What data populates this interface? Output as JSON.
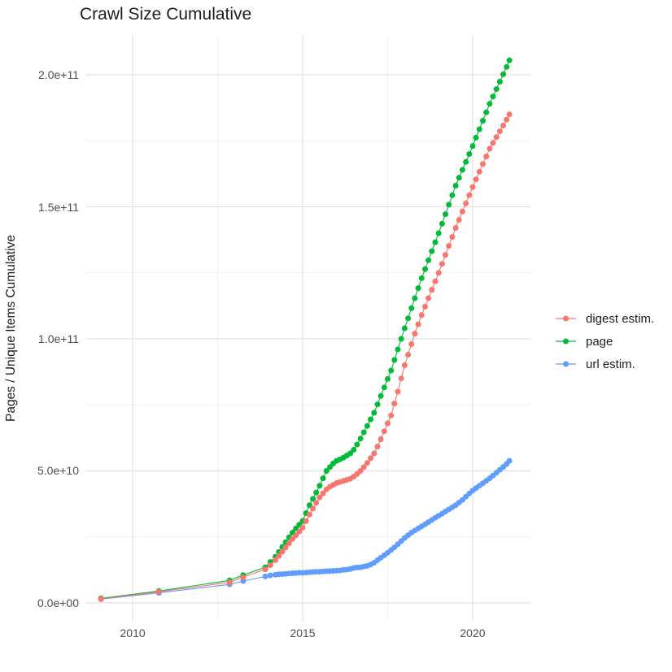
{
  "figure": {
    "background": "#ffffff"
  },
  "chart_data": {
    "type": "line",
    "title": "Crawl Size Cumulative",
    "xlabel": "",
    "ylabel": "Pages / Unique Items Cumulative",
    "legend_position": "right",
    "grid": true,
    "axis": {
      "xlim": [
        2008.61,
        2021.7
      ],
      "ylim": [
        -7100000000.0,
        215100000000.0
      ],
      "x_major_ticks": [
        2010,
        2015,
        2020
      ],
      "x_tick_labels": [
        "2010",
        "2015",
        "2020"
      ],
      "x_minor_ticks": [
        2012.5,
        2017.5
      ],
      "y_major_ticks": [
        0,
        50000000000.0,
        100000000000.0,
        150000000000.0,
        200000000000.0
      ],
      "y_tick_labels": [
        "0.0e+00",
        "5.0e+10",
        "1.0e+11",
        "1.5e+11",
        "2.0e+11"
      ],
      "y_minor_ticks": [
        25000000000.0,
        75000000000.0,
        125000000000.0,
        175000000000.0
      ]
    },
    "colors": {
      "digest_estim": "#F8766D",
      "page": "#00BA38",
      "url_estim": "#619CFF",
      "grid_major": "#e3e3e3",
      "grid_minor": "#f1f1f1",
      "tick_text": "#4d4d4d",
      "text": "#1d1d1d"
    },
    "series": [
      {
        "name": "digest estim.",
        "color": "#F8766D",
        "points": [
          [
            2009.07,
            1500000000.0
          ],
          [
            2010.77,
            4200000000.0
          ],
          [
            2012.85,
            7800000000.0
          ],
          [
            2013.25,
            9700000000.0
          ],
          [
            2013.9,
            12700000000.0
          ],
          [
            2014.05,
            14300000000.0
          ],
          [
            2014.2,
            16200000000.0
          ],
          [
            2014.3,
            17800000000.0
          ],
          [
            2014.4,
            19400000000.0
          ],
          [
            2014.5,
            21000000000.0
          ],
          [
            2014.6,
            22600000000.0
          ],
          [
            2014.7,
            24200000000.0
          ],
          [
            2014.8,
            25600000000.0
          ],
          [
            2014.9,
            27000000000.0
          ],
          [
            2015.0,
            28500000000.0
          ],
          [
            2015.1,
            31000000000.0
          ],
          [
            2015.2,
            33500000000.0
          ],
          [
            2015.3,
            35700000000.0
          ],
          [
            2015.4,
            37900000000.0
          ],
          [
            2015.5,
            40000000000.0
          ],
          [
            2015.6,
            41500000000.0
          ],
          [
            2015.7,
            43000000000.0
          ],
          [
            2015.8,
            44000000000.0
          ],
          [
            2015.9,
            44700000000.0
          ],
          [
            2016.0,
            45400000000.0
          ],
          [
            2016.1,
            45800000000.0
          ],
          [
            2016.2,
            46200000000.0
          ],
          [
            2016.3,
            46600000000.0
          ],
          [
            2016.4,
            47000000000.0
          ],
          [
            2016.5,
            47800000000.0
          ],
          [
            2016.6,
            48800000000.0
          ],
          [
            2016.7,
            50000000000.0
          ],
          [
            2016.8,
            51400000000.0
          ],
          [
            2016.9,
            53000000000.0
          ],
          [
            2017.0,
            54800000000.0
          ],
          [
            2017.1,
            56600000000.0
          ],
          [
            2017.2,
            59200000000.0
          ],
          [
            2017.3,
            62000000000.0
          ],
          [
            2017.4,
            65000000000.0
          ],
          [
            2017.5,
            68000000000.0
          ],
          [
            2017.6,
            71000000000.0
          ],
          [
            2017.7,
            75500000000.0
          ],
          [
            2017.8,
            80000000000.0
          ],
          [
            2017.9,
            85000000000.0
          ],
          [
            2018.0,
            90000000000.0
          ],
          [
            2018.1,
            94000000000.0
          ],
          [
            2018.2,
            98000000000.0
          ],
          [
            2018.3,
            102000000000.0
          ],
          [
            2018.4,
            105500000000.0
          ],
          [
            2018.5,
            109000000000.0
          ],
          [
            2018.6,
            112200000000.0
          ],
          [
            2018.7,
            115400000000.0
          ],
          [
            2018.8,
            118600000000.0
          ],
          [
            2018.9,
            121800000000.0
          ],
          [
            2019.0,
            125000000000.0
          ],
          [
            2019.1,
            128400000000.0
          ],
          [
            2019.2,
            131800000000.0
          ],
          [
            2019.3,
            135200000000.0
          ],
          [
            2019.4,
            138600000000.0
          ],
          [
            2019.5,
            142000000000.0
          ],
          [
            2019.6,
            145100000000.0
          ],
          [
            2019.7,
            148200000000.0
          ],
          [
            2019.8,
            151300000000.0
          ],
          [
            2019.9,
            154400000000.0
          ],
          [
            2020.0,
            157500000000.0
          ],
          [
            2020.1,
            160400000000.0
          ],
          [
            2020.2,
            163300000000.0
          ],
          [
            2020.3,
            166200000000.0
          ],
          [
            2020.4,
            169100000000.0
          ],
          [
            2020.5,
            172000000000.0
          ],
          [
            2020.6,
            174200000000.0
          ],
          [
            2020.7,
            176400000000.0
          ],
          [
            2020.8,
            178600000000.0
          ],
          [
            2020.9,
            180800000000.0
          ],
          [
            2021.0,
            183000000000.0
          ],
          [
            2021.08,
            185000000000.0
          ]
        ]
      },
      {
        "name": "page",
        "color": "#00BA38",
        "points": [
          [
            2009.07,
            1700000000.0
          ],
          [
            2010.77,
            4500000000.0
          ],
          [
            2012.85,
            8500000000.0
          ],
          [
            2013.25,
            10500000000.0
          ],
          [
            2013.9,
            13500000000.0
          ],
          [
            2014.05,
            15500000000.0
          ],
          [
            2014.2,
            17500000000.0
          ],
          [
            2014.3,
            19300000000.0
          ],
          [
            2014.4,
            21200000000.0
          ],
          [
            2014.5,
            23000000000.0
          ],
          [
            2014.6,
            24800000000.0
          ],
          [
            2014.7,
            26600000000.0
          ],
          [
            2014.8,
            28200000000.0
          ],
          [
            2014.9,
            29600000000.0
          ],
          [
            2015.0,
            31000000000.0
          ],
          [
            2015.1,
            34000000000.0
          ],
          [
            2015.2,
            37000000000.0
          ],
          [
            2015.3,
            39400000000.0
          ],
          [
            2015.4,
            41800000000.0
          ],
          [
            2015.5,
            44400000000.0
          ],
          [
            2015.6,
            47200000000.0
          ],
          [
            2015.7,
            50000000000.0
          ],
          [
            2015.8,
            51400000000.0
          ],
          [
            2015.9,
            52800000000.0
          ],
          [
            2016.0,
            53800000000.0
          ],
          [
            2016.1,
            54400000000.0
          ],
          [
            2016.2,
            55000000000.0
          ],
          [
            2016.3,
            55800000000.0
          ],
          [
            2016.4,
            56600000000.0
          ],
          [
            2016.5,
            58000000000.0
          ],
          [
            2016.6,
            60000000000.0
          ],
          [
            2016.7,
            62200000000.0
          ],
          [
            2016.8,
            64600000000.0
          ],
          [
            2016.9,
            67000000000.0
          ],
          [
            2017.0,
            69500000000.0
          ],
          [
            2017.1,
            72000000000.0
          ],
          [
            2017.2,
            75200000000.0
          ],
          [
            2017.3,
            78400000000.0
          ],
          [
            2017.4,
            81600000000.0
          ],
          [
            2017.5,
            84800000000.0
          ],
          [
            2017.6,
            88000000000.0
          ],
          [
            2017.7,
            92000000000.0
          ],
          [
            2017.8,
            96000000000.0
          ],
          [
            2017.9,
            100000000000.0
          ],
          [
            2018.0,
            104000000000.0
          ],
          [
            2018.1,
            107800000000.0
          ],
          [
            2018.2,
            111600000000.0
          ],
          [
            2018.3,
            115400000000.0
          ],
          [
            2018.4,
            119200000000.0
          ],
          [
            2018.5,
            123000000000.0
          ],
          [
            2018.6,
            126400000000.0
          ],
          [
            2018.7,
            129800000000.0
          ],
          [
            2018.8,
            133200000000.0
          ],
          [
            2018.9,
            136600000000.0
          ],
          [
            2019.0,
            140000000000.0
          ],
          [
            2019.1,
            143600000000.0
          ],
          [
            2019.2,
            147200000000.0
          ],
          [
            2019.3,
            150800000000.0
          ],
          [
            2019.4,
            154400000000.0
          ],
          [
            2019.5,
            158000000000.0
          ],
          [
            2019.6,
            161000000000.0
          ],
          [
            2019.7,
            164000000000.0
          ],
          [
            2019.8,
            167000000000.0
          ],
          [
            2019.9,
            170000000000.0
          ],
          [
            2020.0,
            173000000000.0
          ],
          [
            2020.1,
            176200000000.0
          ],
          [
            2020.2,
            179400000000.0
          ],
          [
            2020.3,
            182600000000.0
          ],
          [
            2020.4,
            185800000000.0
          ],
          [
            2020.5,
            189000000000.0
          ],
          [
            2020.6,
            191800000000.0
          ],
          [
            2020.7,
            194600000000.0
          ],
          [
            2020.8,
            197400000000.0
          ],
          [
            2020.9,
            200200000000.0
          ],
          [
            2021.0,
            203000000000.0
          ],
          [
            2021.08,
            205500000000.0
          ]
        ]
      },
      {
        "name": "url estim.",
        "color": "#619CFF",
        "points": [
          [
            2009.07,
            1400000000.0
          ],
          [
            2010.77,
            3800000000.0
          ],
          [
            2012.85,
            7000000000.0
          ],
          [
            2013.25,
            8300000000.0
          ],
          [
            2013.9,
            10000000000.0
          ],
          [
            2014.05,
            10400000000.0
          ],
          [
            2014.2,
            10700000000.0
          ],
          [
            2014.3,
            10800000000.0
          ],
          [
            2014.4,
            10900000000.0
          ],
          [
            2014.5,
            11000000000.0
          ],
          [
            2014.6,
            11100000000.0
          ],
          [
            2014.7,
            11200000000.0
          ],
          [
            2014.8,
            11300000000.0
          ],
          [
            2014.9,
            11400000000.0
          ],
          [
            2015.0,
            11400000000.0
          ],
          [
            2015.1,
            11500000000.0
          ],
          [
            2015.2,
            11600000000.0
          ],
          [
            2015.3,
            11700000000.0
          ],
          [
            2015.4,
            11800000000.0
          ],
          [
            2015.5,
            11800000000.0
          ],
          [
            2015.6,
            11900000000.0
          ],
          [
            2015.7,
            12000000000.0
          ],
          [
            2015.8,
            12000000000.0
          ],
          [
            2015.9,
            12100000000.0
          ],
          [
            2016.0,
            12200000000.0
          ],
          [
            2016.1,
            12300000000.0
          ],
          [
            2016.2,
            12500000000.0
          ],
          [
            2016.3,
            12600000000.0
          ],
          [
            2016.4,
            12800000000.0
          ],
          [
            2016.5,
            13200000000.0
          ],
          [
            2016.6,
            13400000000.0
          ],
          [
            2016.7,
            13500000000.0
          ],
          [
            2016.8,
            13800000000.0
          ],
          [
            2016.9,
            14000000000.0
          ],
          [
            2017.0,
            14500000000.0
          ],
          [
            2017.1,
            15200000000.0
          ],
          [
            2017.2,
            16200000000.0
          ],
          [
            2017.3,
            17100000000.0
          ],
          [
            2017.4,
            18000000000.0
          ],
          [
            2017.5,
            19000000000.0
          ],
          [
            2017.6,
            20000000000.0
          ],
          [
            2017.7,
            21000000000.0
          ],
          [
            2017.8,
            22200000000.0
          ],
          [
            2017.9,
            23400000000.0
          ],
          [
            2018.0,
            24600000000.0
          ],
          [
            2018.1,
            25600000000.0
          ],
          [
            2018.2,
            26600000000.0
          ],
          [
            2018.3,
            27400000000.0
          ],
          [
            2018.4,
            28200000000.0
          ],
          [
            2018.5,
            29000000000.0
          ],
          [
            2018.6,
            29800000000.0
          ],
          [
            2018.7,
            30600000000.0
          ],
          [
            2018.8,
            31400000000.0
          ],
          [
            2018.9,
            32200000000.0
          ],
          [
            2019.0,
            33000000000.0
          ],
          [
            2019.1,
            33800000000.0
          ],
          [
            2019.2,
            34600000000.0
          ],
          [
            2019.3,
            35400000000.0
          ],
          [
            2019.4,
            36200000000.0
          ],
          [
            2019.5,
            37000000000.0
          ],
          [
            2019.6,
            38000000000.0
          ],
          [
            2019.7,
            39000000000.0
          ],
          [
            2019.8,
            40200000000.0
          ],
          [
            2019.9,
            41400000000.0
          ],
          [
            2020.0,
            42500000000.0
          ],
          [
            2020.1,
            43500000000.0
          ],
          [
            2020.2,
            44400000000.0
          ],
          [
            2020.3,
            45300000000.0
          ],
          [
            2020.4,
            46200000000.0
          ],
          [
            2020.5,
            47200000000.0
          ],
          [
            2020.6,
            48200000000.0
          ],
          [
            2020.7,
            49300000000.0
          ],
          [
            2020.8,
            50400000000.0
          ],
          [
            2020.9,
            51500000000.0
          ],
          [
            2021.0,
            52600000000.0
          ],
          [
            2021.08,
            53800000000.0
          ]
        ]
      }
    ]
  }
}
